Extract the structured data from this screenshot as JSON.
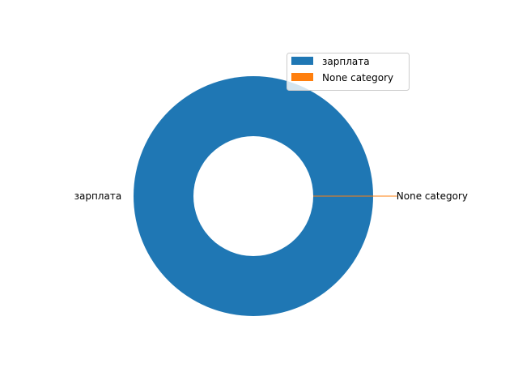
{
  "chart_data": {
    "type": "pie",
    "donut": true,
    "categories": [
      "зарплата",
      "None category"
    ],
    "values": [
      100,
      0
    ],
    "colors": [
      "#1f77b4",
      "#ff7f0e"
    ],
    "legend": {
      "placement": "upper-right",
      "entries": [
        "зарплата",
        "None category"
      ]
    },
    "slice_labels": [
      "зарплата",
      "None category"
    ]
  }
}
